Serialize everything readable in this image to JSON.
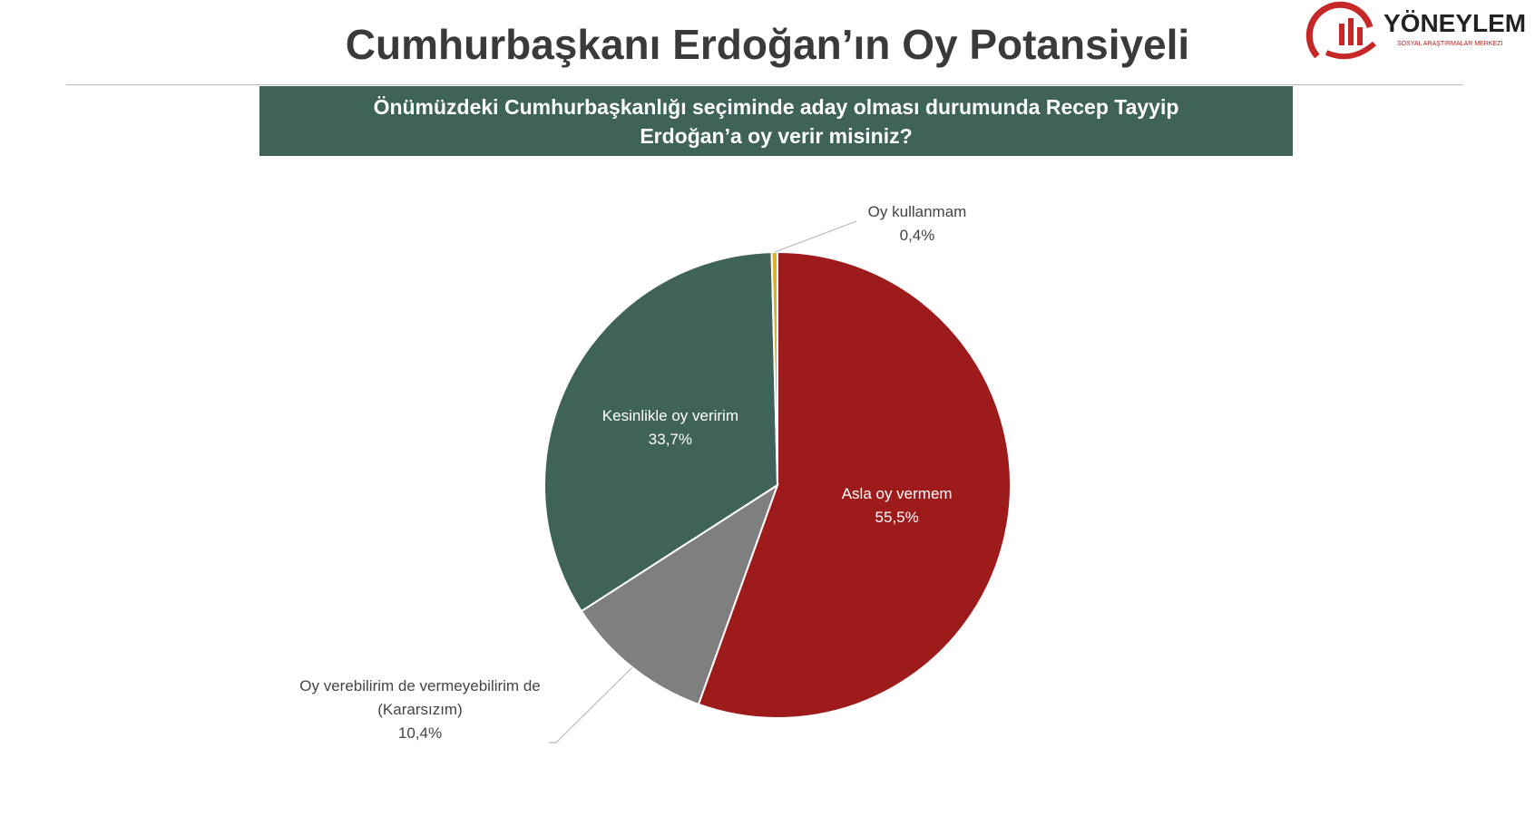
{
  "chart_data": {
    "type": "pie",
    "title": "Cumhurbaşkanı Erdoğan’ın Oy Potansiyeli",
    "subtitle": "Önümüzdeki Cumhurbaşkanlığı seçiminde aday olması durumunda Recep Tayyip Erdoğan’a oy verir misiniz?",
    "logo": {
      "name": "YÖNEYLEM",
      "tagline": "SOSYAL ARAŞTIRMALAR MERKEZİ"
    },
    "categories": [
      "Asla oy vermem",
      "Oy verebilirim de vermeyebilirim de\n(Kararsızım)",
      "Kesinlikle oy veririm",
      "Oy kullanmam"
    ],
    "values": [
      55.5,
      10.4,
      33.7,
      0.4
    ],
    "value_labels": [
      "55,5%",
      "10,4%",
      "33,7%",
      "0,4%"
    ],
    "colors": [
      "#9e1b1b",
      "#7f7f7f",
      "#3f6359",
      "#e0b020"
    ]
  }
}
